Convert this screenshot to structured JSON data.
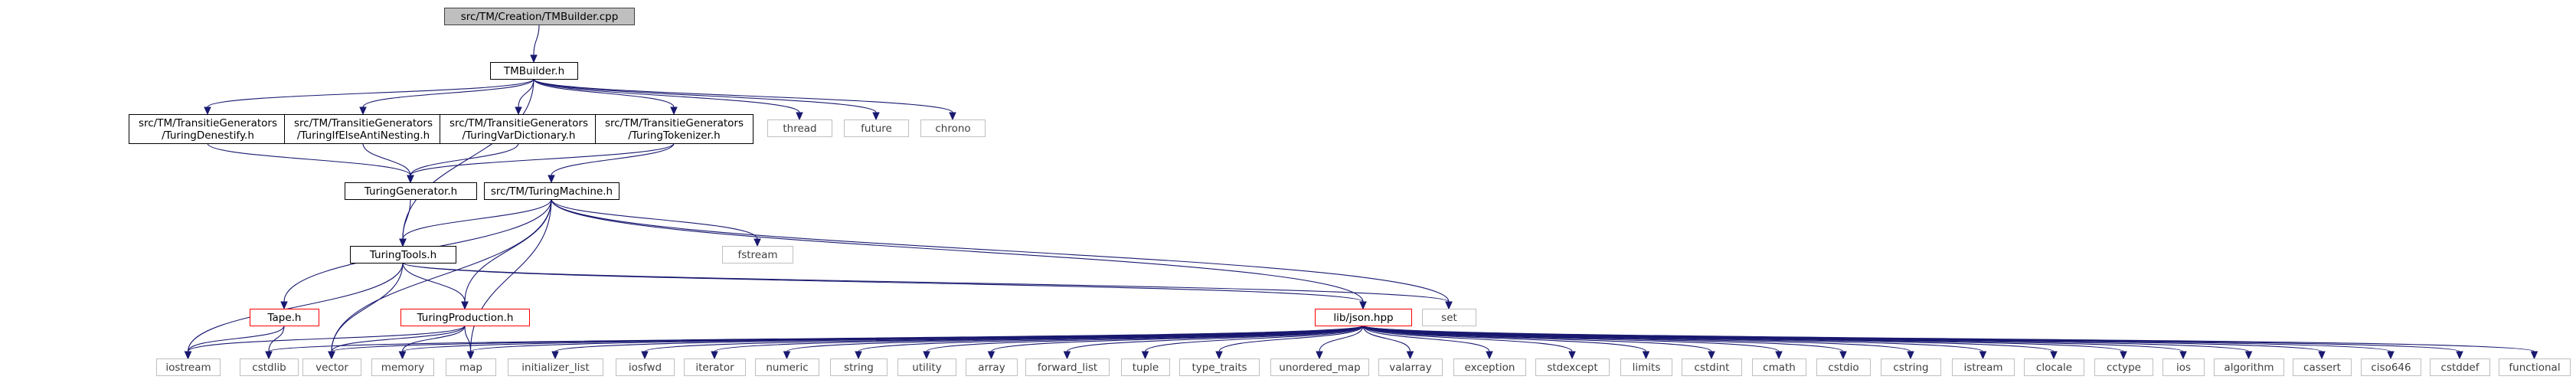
{
  "colors": {
    "edge": "#191970",
    "root_fill": "#bfbfbf",
    "root_border": "#404040",
    "documented_border": "#000000",
    "external_border": "#bfbfbf",
    "external_text": "#404040",
    "incomplete_border": "#ff0000",
    "text": "#000000"
  },
  "nodes": [
    {
      "id": "tmbuilder_cpp",
      "kind": "root",
      "lines": [
        "src/TM/Creation/TMBuilder.cpp"
      ]
    },
    {
      "id": "tmbuilder_h",
      "kind": "documented",
      "lines": [
        "TMBuilder.h"
      ]
    },
    {
      "id": "densestify",
      "kind": "documented",
      "lines": [
        "src/TM/TransitieGenerators",
        "/TuringDenestify.h"
      ]
    },
    {
      "id": "ifelse",
      "kind": "documented",
      "lines": [
        "src/TM/TransitieGenerators",
        "/TuringIfElseAntiNesting.h"
      ]
    },
    {
      "id": "vardict",
      "kind": "documented",
      "lines": [
        "src/TM/TransitieGenerators",
        "/TuringVarDictionary.h"
      ]
    },
    {
      "id": "tokenizer",
      "kind": "documented",
      "lines": [
        "src/TM/TransitieGenerators",
        "/TuringTokenizer.h"
      ]
    },
    {
      "id": "thread",
      "kind": "external",
      "lines": [
        "thread"
      ]
    },
    {
      "id": "future",
      "kind": "external",
      "lines": [
        "future"
      ]
    },
    {
      "id": "chrono",
      "kind": "external",
      "lines": [
        "chrono"
      ]
    },
    {
      "id": "turinggen",
      "kind": "documented",
      "lines": [
        "TuringGenerator.h"
      ]
    },
    {
      "id": "turingmachine",
      "kind": "documented",
      "lines": [
        "src/TM/TuringMachine.h"
      ]
    },
    {
      "id": "fstream",
      "kind": "external",
      "lines": [
        "fstream"
      ]
    },
    {
      "id": "turingtools",
      "kind": "documented",
      "lines": [
        "TuringTools.h"
      ]
    },
    {
      "id": "tape",
      "kind": "incomplete",
      "lines": [
        "Tape.h"
      ]
    },
    {
      "id": "turingprod",
      "kind": "incomplete",
      "lines": [
        "TuringProduction.h"
      ]
    },
    {
      "id": "libjson",
      "kind": "incomplete",
      "lines": [
        "lib/json.hpp"
      ]
    },
    {
      "id": "set",
      "kind": "external",
      "lines": [
        "set"
      ]
    },
    {
      "id": "iostream",
      "kind": "external",
      "lines": [
        "iostream"
      ]
    },
    {
      "id": "cstdlib",
      "kind": "external",
      "lines": [
        "cstdlib"
      ]
    },
    {
      "id": "vector",
      "kind": "external",
      "lines": [
        "vector"
      ]
    },
    {
      "id": "memory",
      "kind": "external",
      "lines": [
        "memory"
      ]
    },
    {
      "id": "map",
      "kind": "external",
      "lines": [
        "map"
      ]
    },
    {
      "id": "initializer_list",
      "kind": "external",
      "lines": [
        "initializer_list"
      ]
    },
    {
      "id": "iosfwd",
      "kind": "external",
      "lines": [
        "iosfwd"
      ]
    },
    {
      "id": "iterator",
      "kind": "external",
      "lines": [
        "iterator"
      ]
    },
    {
      "id": "numeric",
      "kind": "external",
      "lines": [
        "numeric"
      ]
    },
    {
      "id": "string",
      "kind": "external",
      "lines": [
        "string"
      ]
    },
    {
      "id": "utility",
      "kind": "external",
      "lines": [
        "utility"
      ]
    },
    {
      "id": "array",
      "kind": "external",
      "lines": [
        "array"
      ]
    },
    {
      "id": "forward_list",
      "kind": "external",
      "lines": [
        "forward_list"
      ]
    },
    {
      "id": "tuple",
      "kind": "external",
      "lines": [
        "tuple"
      ]
    },
    {
      "id": "type_traits",
      "kind": "external",
      "lines": [
        "type_traits"
      ]
    },
    {
      "id": "unordered_map",
      "kind": "external",
      "lines": [
        "unordered_map"
      ]
    },
    {
      "id": "valarray",
      "kind": "external",
      "lines": [
        "valarray"
      ]
    },
    {
      "id": "exception",
      "kind": "external",
      "lines": [
        "exception"
      ]
    },
    {
      "id": "stdexcept",
      "kind": "external",
      "lines": [
        "stdexcept"
      ]
    },
    {
      "id": "limits",
      "kind": "external",
      "lines": [
        "limits"
      ]
    },
    {
      "id": "cstdint",
      "kind": "external",
      "lines": [
        "cstdint"
      ]
    },
    {
      "id": "cmath",
      "kind": "external",
      "lines": [
        "cmath"
      ]
    },
    {
      "id": "cstdio",
      "kind": "external",
      "lines": [
        "cstdio"
      ]
    },
    {
      "id": "cstring",
      "kind": "external",
      "lines": [
        "cstring"
      ]
    },
    {
      "id": "istream",
      "kind": "external",
      "lines": [
        "istream"
      ]
    },
    {
      "id": "clocale",
      "kind": "external",
      "lines": [
        "clocale"
      ]
    },
    {
      "id": "cctype",
      "kind": "external",
      "lines": [
        "cctype"
      ]
    },
    {
      "id": "ios",
      "kind": "external",
      "lines": [
        "ios"
      ]
    },
    {
      "id": "algorithm",
      "kind": "external",
      "lines": [
        "algorithm"
      ]
    },
    {
      "id": "cassert",
      "kind": "external",
      "lines": [
        "cassert"
      ]
    },
    {
      "id": "ciso646",
      "kind": "external",
      "lines": [
        "ciso646"
      ]
    },
    {
      "id": "cstddef",
      "kind": "external",
      "lines": [
        "cstddef"
      ]
    },
    {
      "id": "functional",
      "kind": "external",
      "lines": [
        "functional"
      ]
    }
  ],
  "edges": [
    [
      "tmbuilder_cpp",
      "tmbuilder_h"
    ],
    [
      "tmbuilder_h",
      "densestify"
    ],
    [
      "tmbuilder_h",
      "ifelse"
    ],
    [
      "tmbuilder_h",
      "vardict"
    ],
    [
      "tmbuilder_h",
      "tokenizer"
    ],
    [
      "tmbuilder_h",
      "thread"
    ],
    [
      "tmbuilder_h",
      "future"
    ],
    [
      "tmbuilder_h",
      "chrono"
    ],
    [
      "tmbuilder_h",
      "turingtools"
    ],
    [
      "densestify",
      "turinggen"
    ],
    [
      "ifelse",
      "turinggen"
    ],
    [
      "vardict",
      "turinggen"
    ],
    [
      "tokenizer",
      "turinggen"
    ],
    [
      "tokenizer",
      "turingmachine"
    ],
    [
      "turinggen",
      "turingtools"
    ],
    [
      "turingmachine",
      "turingtools"
    ],
    [
      "turingmachine",
      "fstream"
    ],
    [
      "turingmachine",
      "tape"
    ],
    [
      "turingmachine",
      "turingprod"
    ],
    [
      "turingmachine",
      "libjson"
    ],
    [
      "turingmachine",
      "set"
    ],
    [
      "turingmachine",
      "vector"
    ],
    [
      "turingmachine",
      "map"
    ],
    [
      "turingtools",
      "turingprod"
    ],
    [
      "turingtools",
      "libjson"
    ],
    [
      "turingtools",
      "set"
    ],
    [
      "turingtools",
      "iostream"
    ],
    [
      "turingtools",
      "vector"
    ],
    [
      "tape",
      "iostream"
    ],
    [
      "tape",
      "cstdlib"
    ],
    [
      "turingprod",
      "iostream"
    ],
    [
      "turingprod",
      "vector"
    ],
    [
      "turingprod",
      "memory"
    ],
    [
      "turingprod",
      "map"
    ],
    [
      "libjson",
      "cstdlib"
    ],
    [
      "libjson",
      "vector"
    ],
    [
      "libjson",
      "memory"
    ],
    [
      "libjson",
      "map"
    ],
    [
      "libjson",
      "initializer_list"
    ],
    [
      "libjson",
      "iosfwd"
    ],
    [
      "libjson",
      "iterator"
    ],
    [
      "libjson",
      "numeric"
    ],
    [
      "libjson",
      "string"
    ],
    [
      "libjson",
      "utility"
    ],
    [
      "libjson",
      "array"
    ],
    [
      "libjson",
      "forward_list"
    ],
    [
      "libjson",
      "tuple"
    ],
    [
      "libjson",
      "type_traits"
    ],
    [
      "libjson",
      "unordered_map"
    ],
    [
      "libjson",
      "valarray"
    ],
    [
      "libjson",
      "exception"
    ],
    [
      "libjson",
      "stdexcept"
    ],
    [
      "libjson",
      "limits"
    ],
    [
      "libjson",
      "cstdint"
    ],
    [
      "libjson",
      "cmath"
    ],
    [
      "libjson",
      "cstdio"
    ],
    [
      "libjson",
      "cstring"
    ],
    [
      "libjson",
      "istream"
    ],
    [
      "libjson",
      "clocale"
    ],
    [
      "libjson",
      "cctype"
    ],
    [
      "libjson",
      "ios"
    ],
    [
      "libjson",
      "algorithm"
    ],
    [
      "libjson",
      "cassert"
    ],
    [
      "libjson",
      "ciso646"
    ],
    [
      "libjson",
      "cstddef"
    ],
    [
      "libjson",
      "functional"
    ]
  ]
}
